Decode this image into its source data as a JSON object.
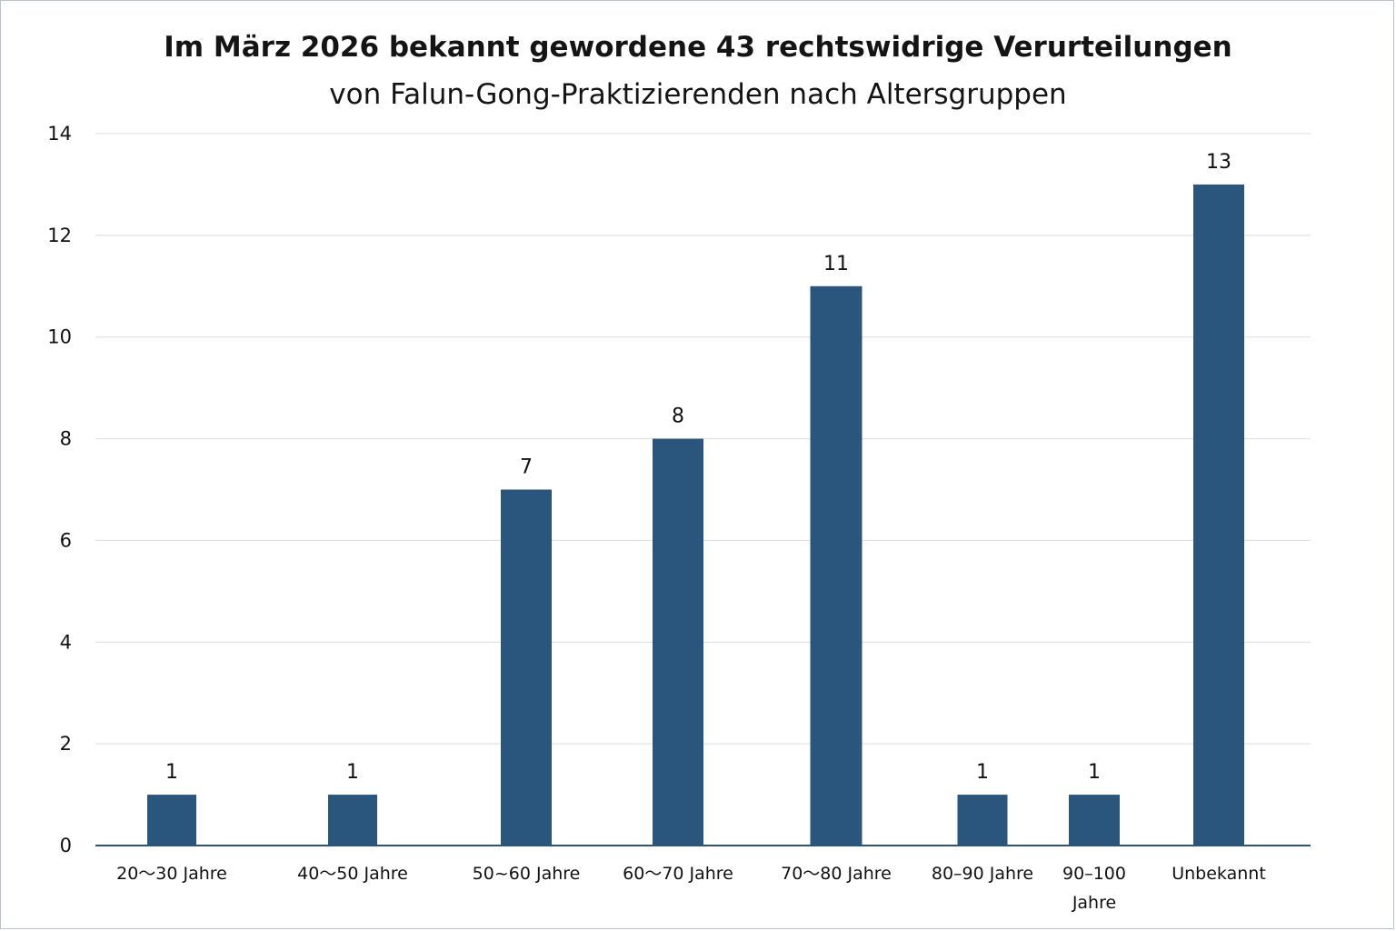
{
  "chart_data": {
    "type": "bar",
    "title": [
      "Im März 2026 bekannt gewordene 43 rechtswidrige Verurteilungen",
      "von Falun-Gong-Praktizierenden nach Altersgruppen"
    ],
    "categories": [
      "20～30 Jahre",
      "40～50 Jahre",
      "50~60 Jahre",
      "60～70 Jahre",
      "70～80 Jahre",
      "80–90 Jahre",
      "90–100 Jahre",
      "Unbekannt"
    ],
    "values": [
      1,
      1,
      7,
      8,
      11,
      1,
      1,
      13
    ],
    "ylim": [
      0,
      14
    ],
    "yticks": [
      0,
      2,
      4,
      6,
      8,
      10,
      12,
      14
    ],
    "grid": true,
    "colors": {
      "bar": "#2a557c",
      "grid": "#d9dde3",
      "axis": "#2a557c"
    }
  }
}
